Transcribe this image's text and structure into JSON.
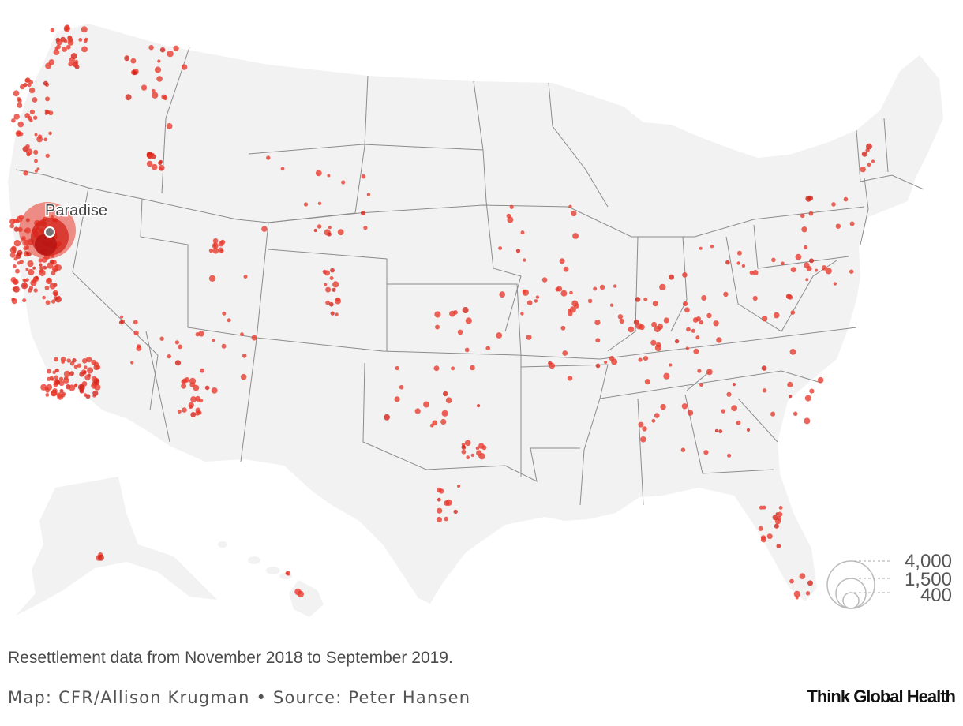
{
  "map": {
    "land_color": "#f2f2f2",
    "border_color": "#8c8c8c",
    "dot_color": "#e8382c",
    "origin_color": "#d32218",
    "origin_label": "Paradise",
    "legend": {
      "values": [
        4000,
        1500,
        400
      ],
      "labels": [
        "4,000",
        "1,500",
        "400"
      ]
    }
  },
  "footer": {
    "note": "Resettlement data from November 2018 to September 2019.",
    "credit": "Map: CFR/Allison Krugman • Source: Peter Hansen",
    "brand": "Think Global Health"
  }
}
